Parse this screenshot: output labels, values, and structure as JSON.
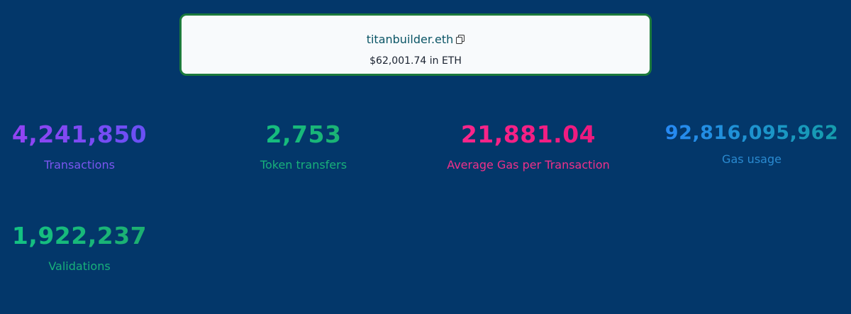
{
  "header": {
    "name": "titanbuilder.eth",
    "balance": "$62,001.74 in ETH"
  },
  "stats": [
    {
      "value": "4,241,850",
      "label": "Transactions"
    },
    {
      "value": "2,753",
      "label": "Token transfers"
    },
    {
      "value": "21,881.04",
      "label": "Average Gas per Transaction"
    },
    {
      "value": "92,816,095,962",
      "label": "Gas usage"
    },
    {
      "value": "1,922,237",
      "label": "Validations"
    }
  ]
}
